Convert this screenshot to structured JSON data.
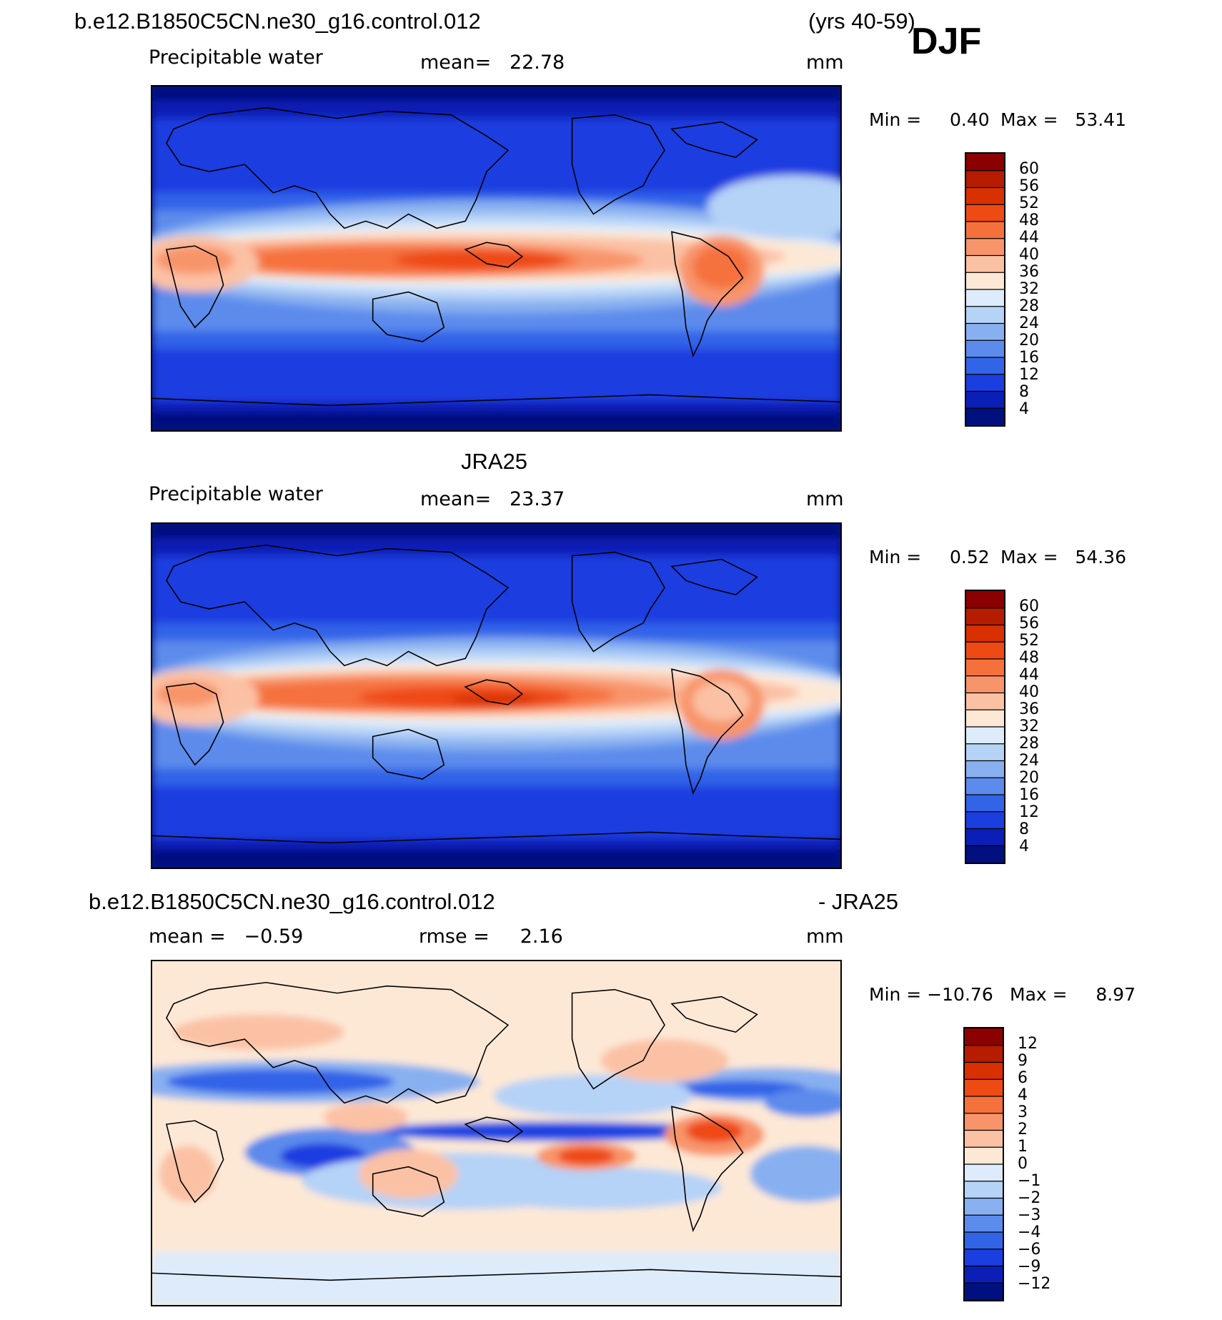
{
  "season": "DJF",
  "header": {
    "case_name": "b.e12.B1850C5CN.ne30_g16.control.012",
    "years": "(yrs 40-59)"
  },
  "panels": [
    {
      "id": "model",
      "title": "",
      "variable": "Precipitable water",
      "mean_text": "mean=   22.78",
      "units": "mm",
      "min_text": "Min =     0.40",
      "max_text": "Max =   53.41"
    },
    {
      "id": "obs",
      "title": "JRA25",
      "variable": "Precipitable water",
      "mean_text": "mean=   23.37",
      "units": "mm",
      "min_text": "Min =     0.52",
      "max_text": "Max =   54.36"
    },
    {
      "id": "diff",
      "title_left": "b.e12.B1850C5CN.ne30_g16.control.012",
      "title_right": "- JRA25",
      "mean_text": "mean =   −0.59",
      "rmse_text": "rmse =     2.16",
      "units": "mm",
      "min_text": "Min = −10.76",
      "max_text": "Max =     8.97"
    }
  ],
  "colorbars": {
    "field": {
      "labels": [
        "60",
        "56",
        "52",
        "48",
        "44",
        "40",
        "36",
        "32",
        "28",
        "24",
        "20",
        "16",
        "12",
        "8",
        "4"
      ],
      "colors": [
        "#8b0000",
        "#b51c00",
        "#d83000",
        "#ee4a14",
        "#f5713c",
        "#f8946a",
        "#fbc1a4",
        "#fde8d6",
        "#ddebfa",
        "#b5d2f7",
        "#88b0f0",
        "#5b8bec",
        "#3264e8",
        "#1a3ee0",
        "#0a1fb5",
        "#00107e"
      ]
    },
    "diff": {
      "labels": [
        "12",
        "9",
        "6",
        "4",
        "3",
        "2",
        "1",
        "0",
        "−1",
        "−2",
        "−3",
        "−4",
        "−6",
        "−9",
        "−12"
      ],
      "colors": [
        "#8b0000",
        "#b51c00",
        "#d83000",
        "#ee4a14",
        "#f5713c",
        "#f8946a",
        "#fbc1a4",
        "#fde8d6",
        "#ddebfa",
        "#b5d2f7",
        "#88b0f0",
        "#5b8bec",
        "#3264e8",
        "#1a3ee0",
        "#0a1fb5",
        "#00107e"
      ]
    }
  }
}
